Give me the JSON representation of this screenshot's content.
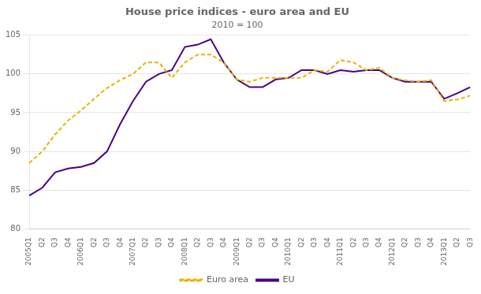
{
  "chart_data": {
    "type": "line",
    "title": "House price indices - euro area and EU",
    "subtitle": "2010 = 100",
    "categories": [
      "2005Q1",
      "Q2",
      "Q3",
      "Q4",
      "2006Q1",
      "Q2",
      "Q3",
      "Q4",
      "2007Q1",
      "Q2",
      "Q3",
      "Q4",
      "2008Q1",
      "Q2",
      "Q3",
      "Q4",
      "2009Q1",
      "Q2",
      "Q3",
      "Q4",
      "2010Q1",
      "Q2",
      "Q3",
      "Q4",
      "2011Q1",
      "Q2",
      "Q3",
      "Q4",
      "2012Q1",
      "Q2",
      "Q3",
      "Q4",
      "2013Q1",
      "Q2",
      "Q3"
    ],
    "series": [
      {
        "name": "Euro area",
        "color": "#E8B400",
        "line_style": "dashed",
        "values": [
          88.5,
          90.0,
          92.2,
          94.0,
          95.3,
          96.8,
          98.2,
          99.2,
          100.0,
          101.5,
          101.5,
          99.5,
          101.5,
          102.5,
          102.5,
          101.5,
          99.3,
          99.0,
          99.5,
          99.5,
          99.5,
          99.5,
          100.5,
          100.3,
          101.8,
          101.5,
          100.5,
          100.8,
          99.5,
          99.2,
          99.0,
          99.2,
          96.5,
          96.7,
          97.2
        ]
      },
      {
        "name": "EU",
        "color": "#4B0082",
        "line_style": "solid",
        "values": [
          84.3,
          85.3,
          87.3,
          87.8,
          88.0,
          88.5,
          90.0,
          93.5,
          96.5,
          99.0,
          100.0,
          100.5,
          103.5,
          103.8,
          104.5,
          101.5,
          99.3,
          98.3,
          98.3,
          99.3,
          99.5,
          100.5,
          100.5,
          100.0,
          100.5,
          100.3,
          100.5,
          100.5,
          99.5,
          99.0,
          99.0,
          99.0,
          96.8,
          97.5,
          98.3
        ]
      }
    ],
    "ylim": [
      80,
      105
    ],
    "yticks": [
      80,
      85,
      90,
      95,
      100,
      105
    ],
    "grid": true,
    "legend": "lower center"
  }
}
